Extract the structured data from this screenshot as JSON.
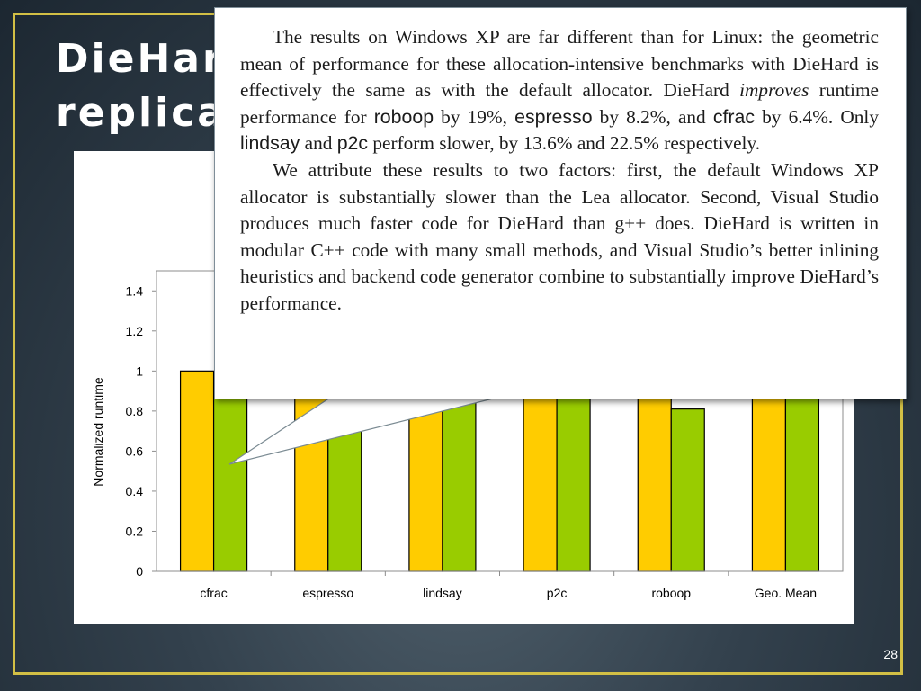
{
  "slide": {
    "title_line1": "DieHard",
    "title_line2": "replicat",
    "page_number": "28"
  },
  "callout": {
    "p1_a": "The results on Windows XP are far different than for Linux: the geometric mean of performance for these allocation-intensive benchmarks with DieHard is effectively the same as with the default allocator. DieHard ",
    "p1_improves": "improves",
    "p1_b": " runtime performance for ",
    "p1_roboop": "roboop",
    "p1_c": " by 19%, ",
    "p1_espresso": "espresso",
    "p1_d": " by 8.2%, and ",
    "p1_cfrac": "cfrac",
    "p1_e": " by 6.4%. Only ",
    "p1_lindsay": "lindsay",
    "p1_f": " and ",
    "p1_p2c": "p2c",
    "p1_g": " perform slower, by 13.6% and 22.5% respectively.",
    "p2": "We attribute these results to two factors: first, the default Windows XP allocator is substantially slower than the Lea allocator. Second, Visual Studio produces much faster code for DieHard than g++ does. DieHard is written in modular C++ code with many small methods, and Visual Studio’s better inlining heuristics and backend code generator combine to substantially improve DieHard’s performance."
  },
  "chart_data": {
    "type": "bar",
    "categories": [
      "cfrac",
      "espresso",
      "lindsay",
      "p2c",
      "roboop",
      "Geo. Mean"
    ],
    "series": [
      {
        "values": [
          1.0,
          1.0,
          1.0,
          1.0,
          1.0,
          1.0
        ],
        "color": "#ffcc00"
      },
      {
        "values": [
          0.94,
          0.92,
          1.14,
          1.23,
          0.81,
          1.0
        ],
        "color": "#99cc00"
      }
    ],
    "ylabel": "Normalized runtime",
    "yticks": [
      "0",
      "0.2",
      "0.4",
      "0.6",
      "0.8",
      "1",
      "1.2",
      "1.4"
    ],
    "ylim": [
      0,
      1.5
    ],
    "grid": false
  }
}
